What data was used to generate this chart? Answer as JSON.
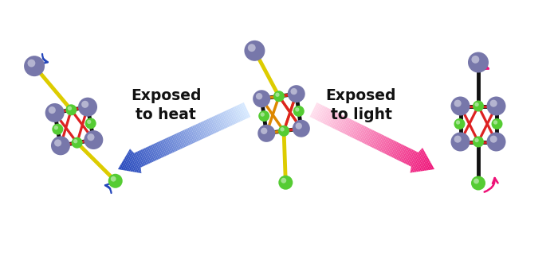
{
  "background_color": "#ffffff",
  "tin_color": "#7777aa",
  "selenium_green": "#55cc33",
  "bond_red": "#dd2222",
  "bond_black": "#111111",
  "bond_yellow": "#ddcc00",
  "bond_orange": "#dd8800",
  "arrow_blue_dark": "#2244bb",
  "arrow_blue_light": "#aaccff",
  "arrow_pink_dark": "#ee1177",
  "arrow_pink_light": "#ffaacc",
  "text_color": "#111111",
  "label_heat": "Exposed\nto heat",
  "label_light": "Exposed\nto light",
  "font_size": 13.5
}
